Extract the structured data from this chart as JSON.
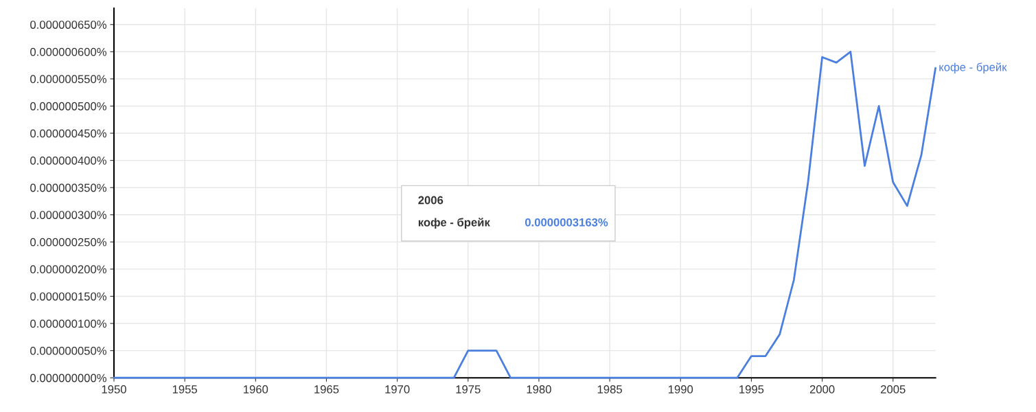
{
  "chart_data": {
    "type": "line",
    "x": [
      1950,
      1951,
      1952,
      1953,
      1954,
      1955,
      1956,
      1957,
      1958,
      1959,
      1960,
      1961,
      1962,
      1963,
      1964,
      1965,
      1966,
      1967,
      1968,
      1969,
      1970,
      1971,
      1972,
      1973,
      1974,
      1975,
      1976,
      1977,
      1978,
      1979,
      1980,
      1981,
      1982,
      1983,
      1984,
      1985,
      1986,
      1987,
      1988,
      1989,
      1990,
      1991,
      1992,
      1993,
      1994,
      1995,
      1996,
      1997,
      1998,
      1999,
      2000,
      2001,
      2002,
      2003,
      2004,
      2005,
      2006,
      2007,
      2008
    ],
    "series": [
      {
        "name": "кофе - брейк",
        "color": "#4a7fe0",
        "values": [
          0,
          0,
          0,
          0,
          0,
          0,
          0,
          0,
          0,
          0,
          0,
          0,
          0,
          0,
          0,
          0,
          0,
          0,
          0,
          0,
          0,
          0,
          0,
          0,
          0,
          5e-08,
          5e-08,
          5e-08,
          0,
          0,
          0,
          0,
          0,
          0,
          0,
          0,
          0,
          0,
          0,
          0,
          0,
          0,
          0,
          0,
          0,
          4e-08,
          4e-08,
          8e-08,
          1.8e-07,
          3.6e-07,
          5.9e-07,
          5.8e-07,
          6e-07,
          3.9e-07,
          5e-07,
          3.6e-07,
          3.163e-07,
          4.1e-07,
          5.7e-07
        ]
      }
    ],
    "xlim": [
      1950,
      2008
    ],
    "ylim": [
      0,
      6.8e-07
    ],
    "xticks": [
      1950,
      1955,
      1960,
      1965,
      1970,
      1975,
      1980,
      1985,
      1990,
      1995,
      2000,
      2005
    ],
    "yticks": [
      {
        "value": 0,
        "label": "0.000000000%"
      },
      {
        "value": 5e-08,
        "label": "0.000000050%"
      },
      {
        "value": 1e-07,
        "label": "0.000000100%"
      },
      {
        "value": 1.5e-07,
        "label": "0.000000150%"
      },
      {
        "value": 2e-07,
        "label": "0.000000200%"
      },
      {
        "value": 2.5e-07,
        "label": "0.000000250%"
      },
      {
        "value": 3e-07,
        "label": "0.000000300%"
      },
      {
        "value": 3.5e-07,
        "label": "0.000000350%"
      },
      {
        "value": 4e-07,
        "label": "0.000000400%"
      },
      {
        "value": 4.5e-07,
        "label": "0.000000450%"
      },
      {
        "value": 5e-07,
        "label": "0.000000500%"
      },
      {
        "value": 5.5e-07,
        "label": "0.000000550%"
      },
      {
        "value": 6e-07,
        "label": "0.000000600%"
      },
      {
        "value": 6.5e-07,
        "label": "0.000000650%"
      }
    ],
    "grid": true,
    "legend": false,
    "annotations": [
      "2006",
      "кофе - брейк",
      "0.0000003163%"
    ]
  }
}
